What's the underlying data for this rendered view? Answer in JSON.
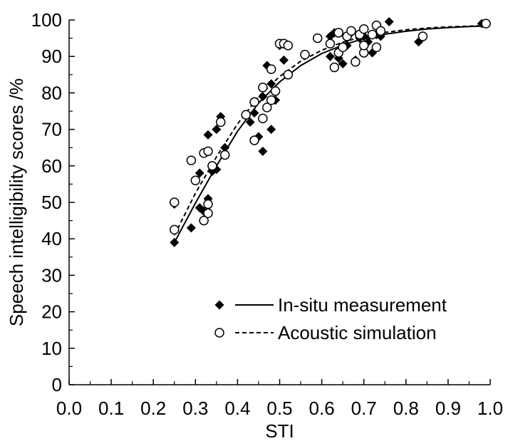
{
  "chart_data": {
    "type": "scatter",
    "xlabel": "STI",
    "ylabel": "Speech intelligibility scores /%",
    "xlim": [
      0.0,
      1.0
    ],
    "ylim": [
      0,
      100
    ],
    "x_ticks": [
      "0.0",
      "0.1",
      "0.2",
      "0.3",
      "0.4",
      "0.5",
      "0.6",
      "0.7",
      "0.8",
      "0.9",
      "1.0"
    ],
    "y_ticks": [
      "0",
      "10",
      "20",
      "30",
      "40",
      "50",
      "60",
      "70",
      "80",
      "90",
      "100"
    ],
    "legend_position": "lower-right",
    "series": [
      {
        "name": "In-situ measurement",
        "marker": "diamond",
        "line": "solid",
        "color": "#000000",
        "points": [
          [
            0.25,
            39
          ],
          [
            0.25,
            49.5
          ],
          [
            0.29,
            43
          ],
          [
            0.31,
            48.5
          ],
          [
            0.31,
            58
          ],
          [
            0.32,
            47.5
          ],
          [
            0.33,
            51
          ],
          [
            0.33,
            68.5
          ],
          [
            0.34,
            58.5
          ],
          [
            0.35,
            70
          ],
          [
            0.35,
            59
          ],
          [
            0.36,
            73.5
          ],
          [
            0.37,
            65
          ],
          [
            0.43,
            72
          ],
          [
            0.44,
            74.5
          ],
          [
            0.45,
            68
          ],
          [
            0.46,
            64
          ],
          [
            0.46,
            79
          ],
          [
            0.47,
            76
          ],
          [
            0.47,
            87.5
          ],
          [
            0.48,
            70
          ],
          [
            0.48,
            82.5
          ],
          [
            0.49,
            78
          ],
          [
            0.5,
            93
          ],
          [
            0.51,
            89
          ],
          [
            0.62,
            90
          ],
          [
            0.62,
            95.5
          ],
          [
            0.63,
            96.5
          ],
          [
            0.64,
            89.5
          ],
          [
            0.65,
            88
          ],
          [
            0.66,
            93
          ],
          [
            0.66,
            95
          ],
          [
            0.67,
            96.5
          ],
          [
            0.68,
            89
          ],
          [
            0.69,
            95
          ],
          [
            0.7,
            95.5
          ],
          [
            0.71,
            94
          ],
          [
            0.72,
            91
          ],
          [
            0.73,
            96
          ],
          [
            0.74,
            95.5
          ],
          [
            0.76,
            99.5
          ],
          [
            0.83,
            94
          ],
          [
            0.98,
            99
          ]
        ],
        "fit": [
          [
            0.25,
            39
          ],
          [
            0.3,
            49.8
          ],
          [
            0.35,
            60
          ],
          [
            0.4,
            69.5
          ],
          [
            0.45,
            77.2
          ],
          [
            0.5,
            83
          ],
          [
            0.55,
            87.5
          ],
          [
            0.6,
            90.8
          ],
          [
            0.65,
            93.1
          ],
          [
            0.7,
            94.9
          ],
          [
            0.75,
            96.1
          ],
          [
            0.8,
            96.9
          ],
          [
            0.85,
            97.5
          ],
          [
            0.9,
            97.9
          ],
          [
            0.95,
            98.2
          ],
          [
            1.0,
            98.4
          ]
        ]
      },
      {
        "name": "Acoustic simulation",
        "marker": "circle",
        "line": "dashed",
        "color": "#000000",
        "points": [
          [
            0.25,
            42.5
          ],
          [
            0.25,
            50
          ],
          [
            0.29,
            61.5
          ],
          [
            0.3,
            56
          ],
          [
            0.32,
            45
          ],
          [
            0.32,
            63.5
          ],
          [
            0.33,
            64
          ],
          [
            0.33,
            47
          ],
          [
            0.33,
            49.5
          ],
          [
            0.34,
            60
          ],
          [
            0.36,
            72
          ],
          [
            0.37,
            63
          ],
          [
            0.42,
            74
          ],
          [
            0.44,
            67
          ],
          [
            0.44,
            77.5
          ],
          [
            0.46,
            73
          ],
          [
            0.46,
            81.5
          ],
          [
            0.47,
            76
          ],
          [
            0.48,
            78
          ],
          [
            0.48,
            86.5
          ],
          [
            0.49,
            80.5
          ],
          [
            0.5,
            93.5
          ],
          [
            0.51,
            93.5
          ],
          [
            0.52,
            85
          ],
          [
            0.52,
            93
          ],
          [
            0.56,
            90.5
          ],
          [
            0.59,
            95
          ],
          [
            0.62,
            93.5
          ],
          [
            0.63,
            87
          ],
          [
            0.64,
            91
          ],
          [
            0.64,
            96.5
          ],
          [
            0.65,
            92.5
          ],
          [
            0.66,
            95.5
          ],
          [
            0.67,
            97
          ],
          [
            0.68,
            88.5
          ],
          [
            0.69,
            96
          ],
          [
            0.7,
            91
          ],
          [
            0.7,
            93
          ],
          [
            0.7,
            97.5
          ],
          [
            0.72,
            96
          ],
          [
            0.73,
            92.5
          ],
          [
            0.73,
            98.5
          ],
          [
            0.74,
            97
          ],
          [
            0.84,
            95.5
          ],
          [
            0.99,
            99
          ]
        ],
        "fit": [
          [
            0.25,
            41
          ],
          [
            0.3,
            52.5
          ],
          [
            0.35,
            62.5
          ],
          [
            0.4,
            71.5
          ],
          [
            0.45,
            79
          ],
          [
            0.5,
            84.5
          ],
          [
            0.55,
            88.7
          ],
          [
            0.6,
            91.7
          ],
          [
            0.65,
            93.9
          ],
          [
            0.7,
            95.5
          ],
          [
            0.75,
            96.6
          ],
          [
            0.8,
            97.3
          ],
          [
            0.85,
            97.8
          ],
          [
            0.9,
            98.1
          ],
          [
            0.95,
            98.3
          ],
          [
            1.0,
            98.5
          ]
        ]
      }
    ]
  }
}
